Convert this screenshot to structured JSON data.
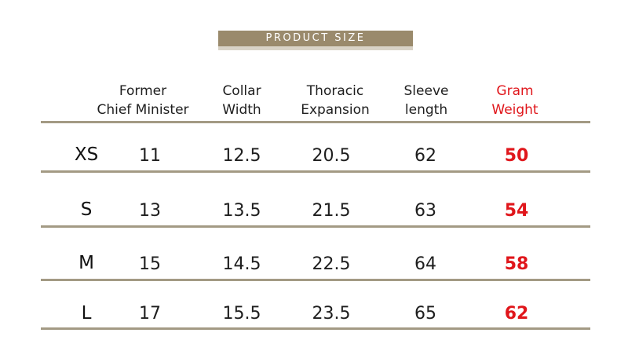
{
  "title": "PRODUCT SIZE",
  "columns": [
    {
      "line1": "",
      "line2": ""
    },
    {
      "line1": "Former",
      "line2": "Chief Minister"
    },
    {
      "line1": "Collar",
      "line2": "Width"
    },
    {
      "line1": "Thoracic",
      "line2": "Expansion"
    },
    {
      "line1": "Sleeve",
      "line2": "length"
    },
    {
      "line1": "Gram",
      "line2": "Weight"
    }
  ],
  "rows": [
    {
      "size": "XS",
      "values": [
        "11",
        "12.5",
        "20.5",
        "62",
        "50"
      ]
    },
    {
      "size": "S",
      "values": [
        "13",
        "13.5",
        "21.5",
        "63",
        "54"
      ]
    },
    {
      "size": "M",
      "values": [
        "15",
        "14.5",
        "22.5",
        "64",
        "58"
      ]
    },
    {
      "size": "L",
      "values": [
        "17",
        "15.5",
        "23.5",
        "65",
        "62"
      ]
    }
  ],
  "colors": {
    "banner": "#9a8a6c",
    "rule": "#a39a84",
    "highlight": "#e0161b"
  }
}
